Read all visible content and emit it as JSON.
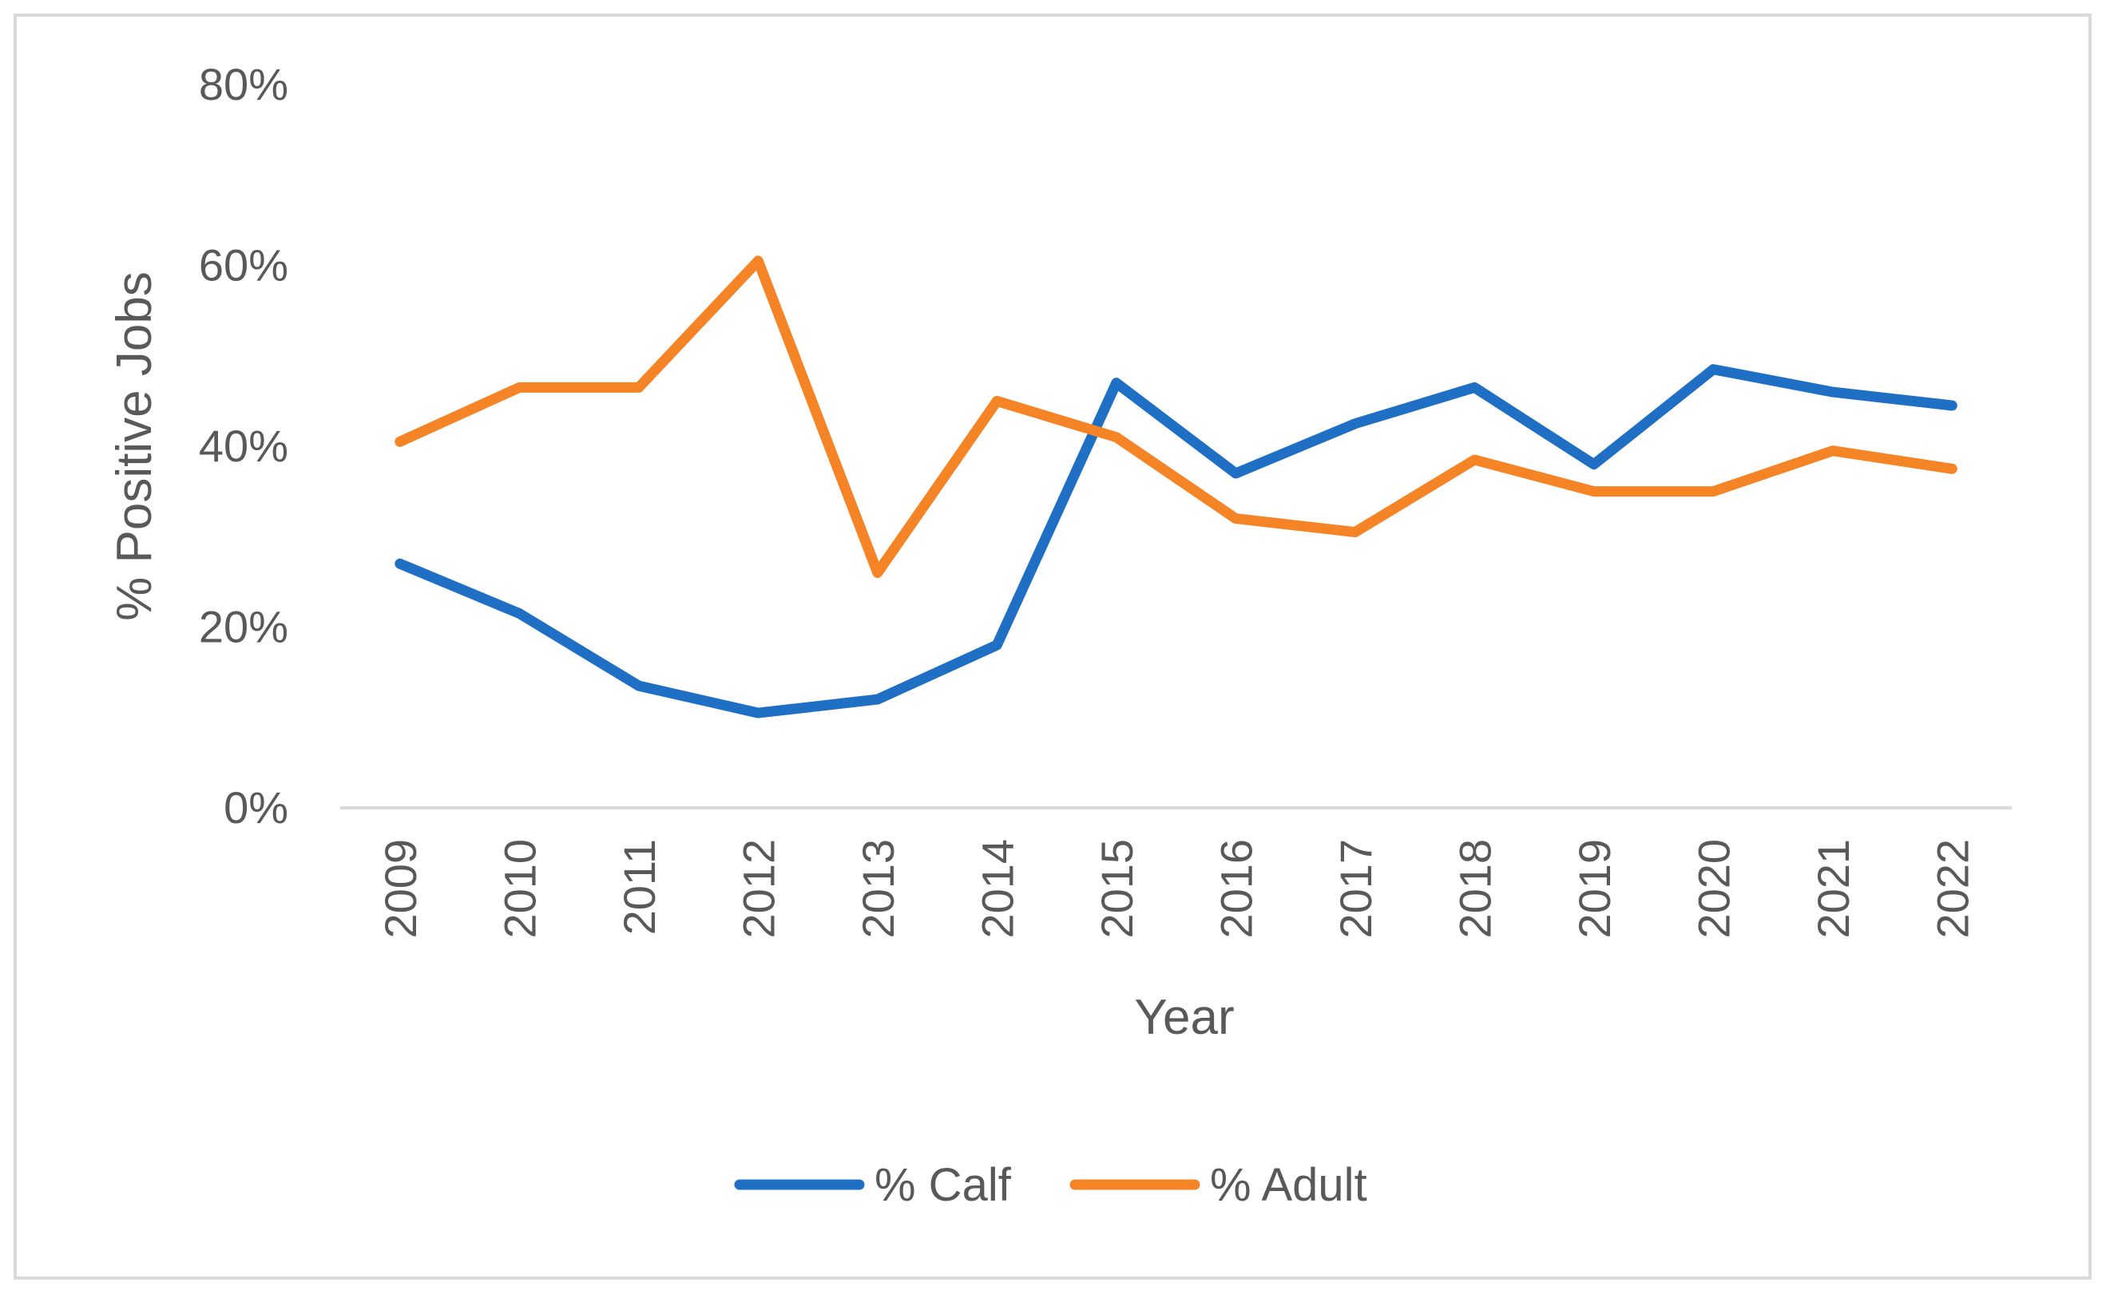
{
  "chart_data": {
    "type": "line",
    "title": "",
    "xlabel": "Year",
    "ylabel": "% Positive Jobs",
    "x": [
      "2009",
      "2010",
      "2011",
      "2012",
      "2013",
      "2014",
      "2015",
      "2016",
      "2017",
      "2018",
      "2019",
      "2020",
      "2021",
      "2022"
    ],
    "ylim": [
      0,
      80
    ],
    "yticks": [
      0,
      20,
      40,
      60,
      80
    ],
    "ytick_labels": [
      "0%",
      "20%",
      "40%",
      "60%",
      "80%"
    ],
    "grid": false,
    "legend_position": "bottom",
    "series": [
      {
        "name": "% Calf",
        "color": "#1F6FC5",
        "values": [
          27,
          21.5,
          13.5,
          10.5,
          12,
          18,
          47,
          37,
          42.5,
          46.5,
          38,
          48.5,
          46,
          44.5
        ]
      },
      {
        "name": "% Adult",
        "color": "#F58426",
        "values": [
          40.5,
          46.5,
          46.5,
          60.5,
          26,
          45,
          41,
          32,
          30.5,
          38.5,
          35,
          35,
          39.5,
          37.5
        ]
      }
    ]
  }
}
